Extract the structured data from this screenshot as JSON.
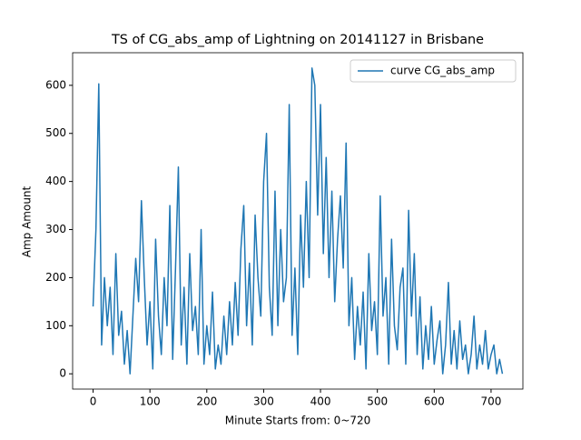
{
  "chart_data": {
    "type": "line",
    "title": "TS of CG_abs_amp of Lightning on 20141127 in Brisbane",
    "xlabel": "Minute Starts from: 0~720",
    "ylabel": "Amp Amount",
    "x": [
      0,
      5,
      10,
      15,
      20,
      25,
      30,
      35,
      40,
      45,
      50,
      55,
      60,
      65,
      70,
      75,
      80,
      85,
      90,
      95,
      100,
      105,
      110,
      115,
      120,
      125,
      130,
      135,
      140,
      145,
      150,
      155,
      160,
      165,
      170,
      175,
      180,
      185,
      190,
      195,
      200,
      205,
      210,
      215,
      220,
      225,
      230,
      235,
      240,
      245,
      250,
      255,
      260,
      265,
      270,
      275,
      280,
      285,
      290,
      295,
      300,
      305,
      310,
      315,
      320,
      325,
      330,
      335,
      340,
      345,
      350,
      355,
      360,
      365,
      370,
      375,
      380,
      385,
      390,
      395,
      400,
      405,
      410,
      415,
      420,
      425,
      430,
      435,
      440,
      445,
      450,
      455,
      460,
      465,
      470,
      475,
      480,
      485,
      490,
      495,
      500,
      505,
      510,
      515,
      520,
      525,
      530,
      535,
      540,
      545,
      550,
      555,
      560,
      565,
      570,
      575,
      580,
      585,
      590,
      595,
      600,
      605,
      610,
      615,
      620,
      625,
      630,
      635,
      640,
      645,
      650,
      655,
      660,
      665,
      670,
      675,
      680,
      685,
      690,
      695,
      700,
      705,
      710,
      715,
      720
    ],
    "series": [
      {
        "name": "curve CG_abs_amp",
        "color": "#1f77b4",
        "values": [
          140,
          300,
          603,
          60,
          200,
          100,
          180,
          40,
          250,
          80,
          130,
          20,
          90,
          0,
          120,
          240,
          150,
          360,
          200,
          60,
          150,
          10,
          280,
          120,
          40,
          200,
          100,
          350,
          30,
          220,
          430,
          60,
          180,
          20,
          250,
          90,
          140,
          40,
          300,
          20,
          100,
          40,
          170,
          10,
          60,
          20,
          120,
          40,
          150,
          60,
          190,
          80,
          260,
          350,
          100,
          230,
          60,
          330,
          200,
          120,
          400,
          500,
          180,
          80,
          380,
          100,
          300,
          150,
          200,
          560,
          80,
          220,
          40,
          330,
          180,
          400,
          200,
          636,
          600,
          330,
          560,
          250,
          450,
          200,
          380,
          150,
          280,
          370,
          220,
          480,
          100,
          200,
          30,
          140,
          60,
          170,
          10,
          250,
          90,
          150,
          40,
          370,
          120,
          200,
          20,
          280,
          100,
          50,
          180,
          220,
          20,
          340,
          120,
          250,
          40,
          160,
          10,
          100,
          30,
          140,
          20,
          70,
          110,
          0,
          60,
          190,
          20,
          90,
          10,
          110,
          30,
          60,
          0,
          40,
          120,
          10,
          60,
          20,
          90,
          10,
          40,
          60,
          0,
          30,
          0
        ]
      }
    ],
    "xlim": [
      -36,
      756
    ],
    "ylim": [
      -31.8,
      667.8
    ],
    "xticks": [
      0,
      100,
      200,
      300,
      400,
      500,
      600,
      700
    ],
    "yticks": [
      0,
      100,
      200,
      300,
      400,
      500,
      600
    ],
    "legend": "upper right"
  }
}
